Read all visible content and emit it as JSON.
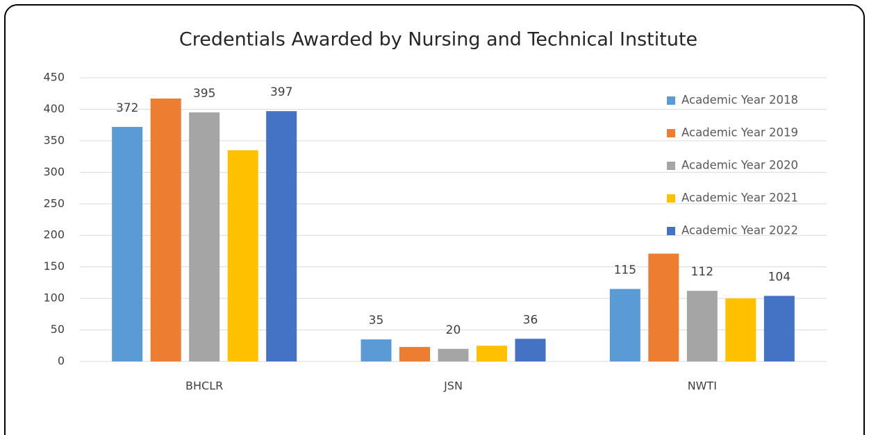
{
  "chart_data": {
    "type": "bar",
    "title": "Credentials Awarded by Nursing and Technical Institute",
    "categories": [
      "BHCLR",
      "JSN",
      "NWTI"
    ],
    "series": [
      {
        "name": "Academic Year 2018",
        "color": "#5b9bd5",
        "values": [
          372,
          35,
          115
        ],
        "data_labels": true
      },
      {
        "name": "Academic Year 2019",
        "color": "#ed7d31",
        "values": [
          417,
          23,
          171
        ],
        "data_labels": false
      },
      {
        "name": "Academic Year 2020",
        "color": "#a5a5a5",
        "values": [
          395,
          20,
          112
        ],
        "data_labels": true
      },
      {
        "name": "Academic Year 2021",
        "color": "#ffc000",
        "values": [
          335,
          25,
          100
        ],
        "data_labels": false
      },
      {
        "name": "Academic Year 2022",
        "color": "#4472c4",
        "values": [
          397,
          36,
          104
        ],
        "data_labels": true
      }
    ],
    "ylim": [
      0,
      450
    ],
    "yticks": [
      0,
      50,
      100,
      150,
      200,
      250,
      300,
      350,
      400,
      450
    ],
    "grid": true,
    "legend": "right"
  }
}
